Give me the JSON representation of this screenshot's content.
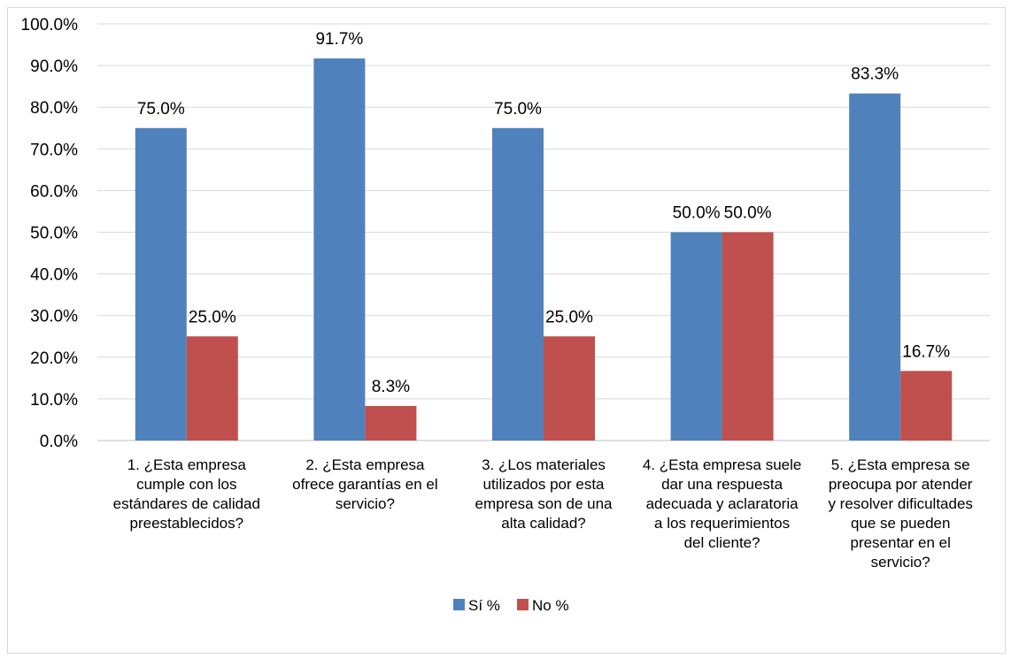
{
  "chart_data": {
    "type": "bar",
    "categories": [
      [
        "1. ¿Esta empresa",
        "cumple con los",
        "estándares de calidad",
        "preestablecidos?"
      ],
      [
        "2. ¿Esta empresa",
        "ofrece garantías en el",
        "servicio?"
      ],
      [
        "3. ¿Los materiales",
        "utilizados por esta",
        "empresa son de una",
        "alta calidad?"
      ],
      [
        "4. ¿Esta empresa suele",
        "dar una respuesta",
        "adecuada y aclaratoria",
        "a los requerimientos",
        "del cliente?"
      ],
      [
        "5. ¿Esta empresa se",
        "preocupa por atender",
        "y resolver dificultades",
        "que se pueden",
        "presentar en el",
        "servicio?"
      ]
    ],
    "series": [
      {
        "name": "Sí %",
        "color": "#4f81bd",
        "values": [
          75.0,
          91.7,
          75.0,
          50.0,
          83.3
        ],
        "labels": [
          "75.0%",
          "91.7%",
          "75.0%",
          "50.0%",
          "83.3%"
        ]
      },
      {
        "name": "No %",
        "color": "#c0504d",
        "values": [
          25.0,
          8.3,
          25.0,
          50.0,
          16.7
        ],
        "labels": [
          "25.0%",
          "8.3%",
          "25.0%",
          "50.0%",
          "16.7%"
        ]
      }
    ],
    "ylim": [
      0,
      100
    ],
    "yticks": [
      "0.0%",
      "10.0%",
      "20.0%",
      "30.0%",
      "40.0%",
      "50.0%",
      "60.0%",
      "70.0%",
      "80.0%",
      "90.0%",
      "100.0%"
    ],
    "grid": true,
    "legend": "bottom",
    "title": "",
    "xlabel": "",
    "ylabel": ""
  }
}
